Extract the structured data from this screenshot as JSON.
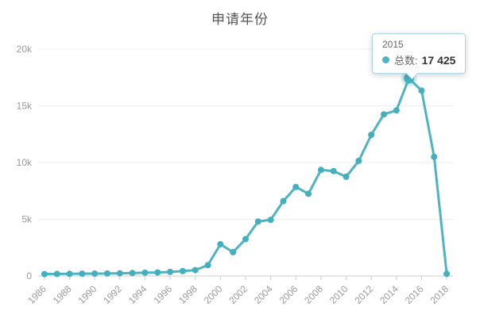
{
  "title": "申请年份",
  "colors": {
    "line": "#4fb4c1",
    "point": "#45afbc",
    "highlight_halo": "#4fb4c1",
    "grid": "#eeeeee",
    "axis_line": "#cccccc",
    "axis_label": "#999999",
    "title_text": "#555555",
    "tooltip_border": "#aad5e5",
    "tooltip_text": "#666666",
    "tooltip_value": "#333333"
  },
  "tooltip": {
    "year": "2015",
    "series_label": "总数",
    "separator": ":",
    "value": "17 425"
  },
  "chart_data": {
    "type": "line",
    "title": "申请年份",
    "xlabel": "",
    "ylabel": "",
    "x": [
      1986,
      1987,
      1988,
      1989,
      1990,
      1991,
      1992,
      1993,
      1994,
      1995,
      1996,
      1997,
      1998,
      1999,
      2000,
      2001,
      2002,
      2003,
      2004,
      2005,
      2006,
      2007,
      2008,
      2009,
      2010,
      2011,
      2012,
      2013,
      2014,
      2015,
      2016,
      2017,
      2018
    ],
    "series": [
      {
        "name": "总数",
        "values": [
          170,
          180,
          190,
          200,
          210,
          220,
          240,
          260,
          290,
          310,
          360,
          430,
          520,
          950,
          2800,
          2100,
          3250,
          4800,
          4950,
          6600,
          7850,
          7250,
          9350,
          9250,
          8750,
          10150,
          12450,
          14250,
          14600,
          17425,
          16350,
          10500,
          190
        ]
      }
    ],
    "ylim": [
      0,
      20000
    ],
    "ytick_labels": [
      "0",
      "5k",
      "10k",
      "15k",
      "20k"
    ],
    "xtick_step": 2,
    "grid": true,
    "legend": "none",
    "highlight": {
      "x": 2015,
      "value": 17425
    }
  }
}
